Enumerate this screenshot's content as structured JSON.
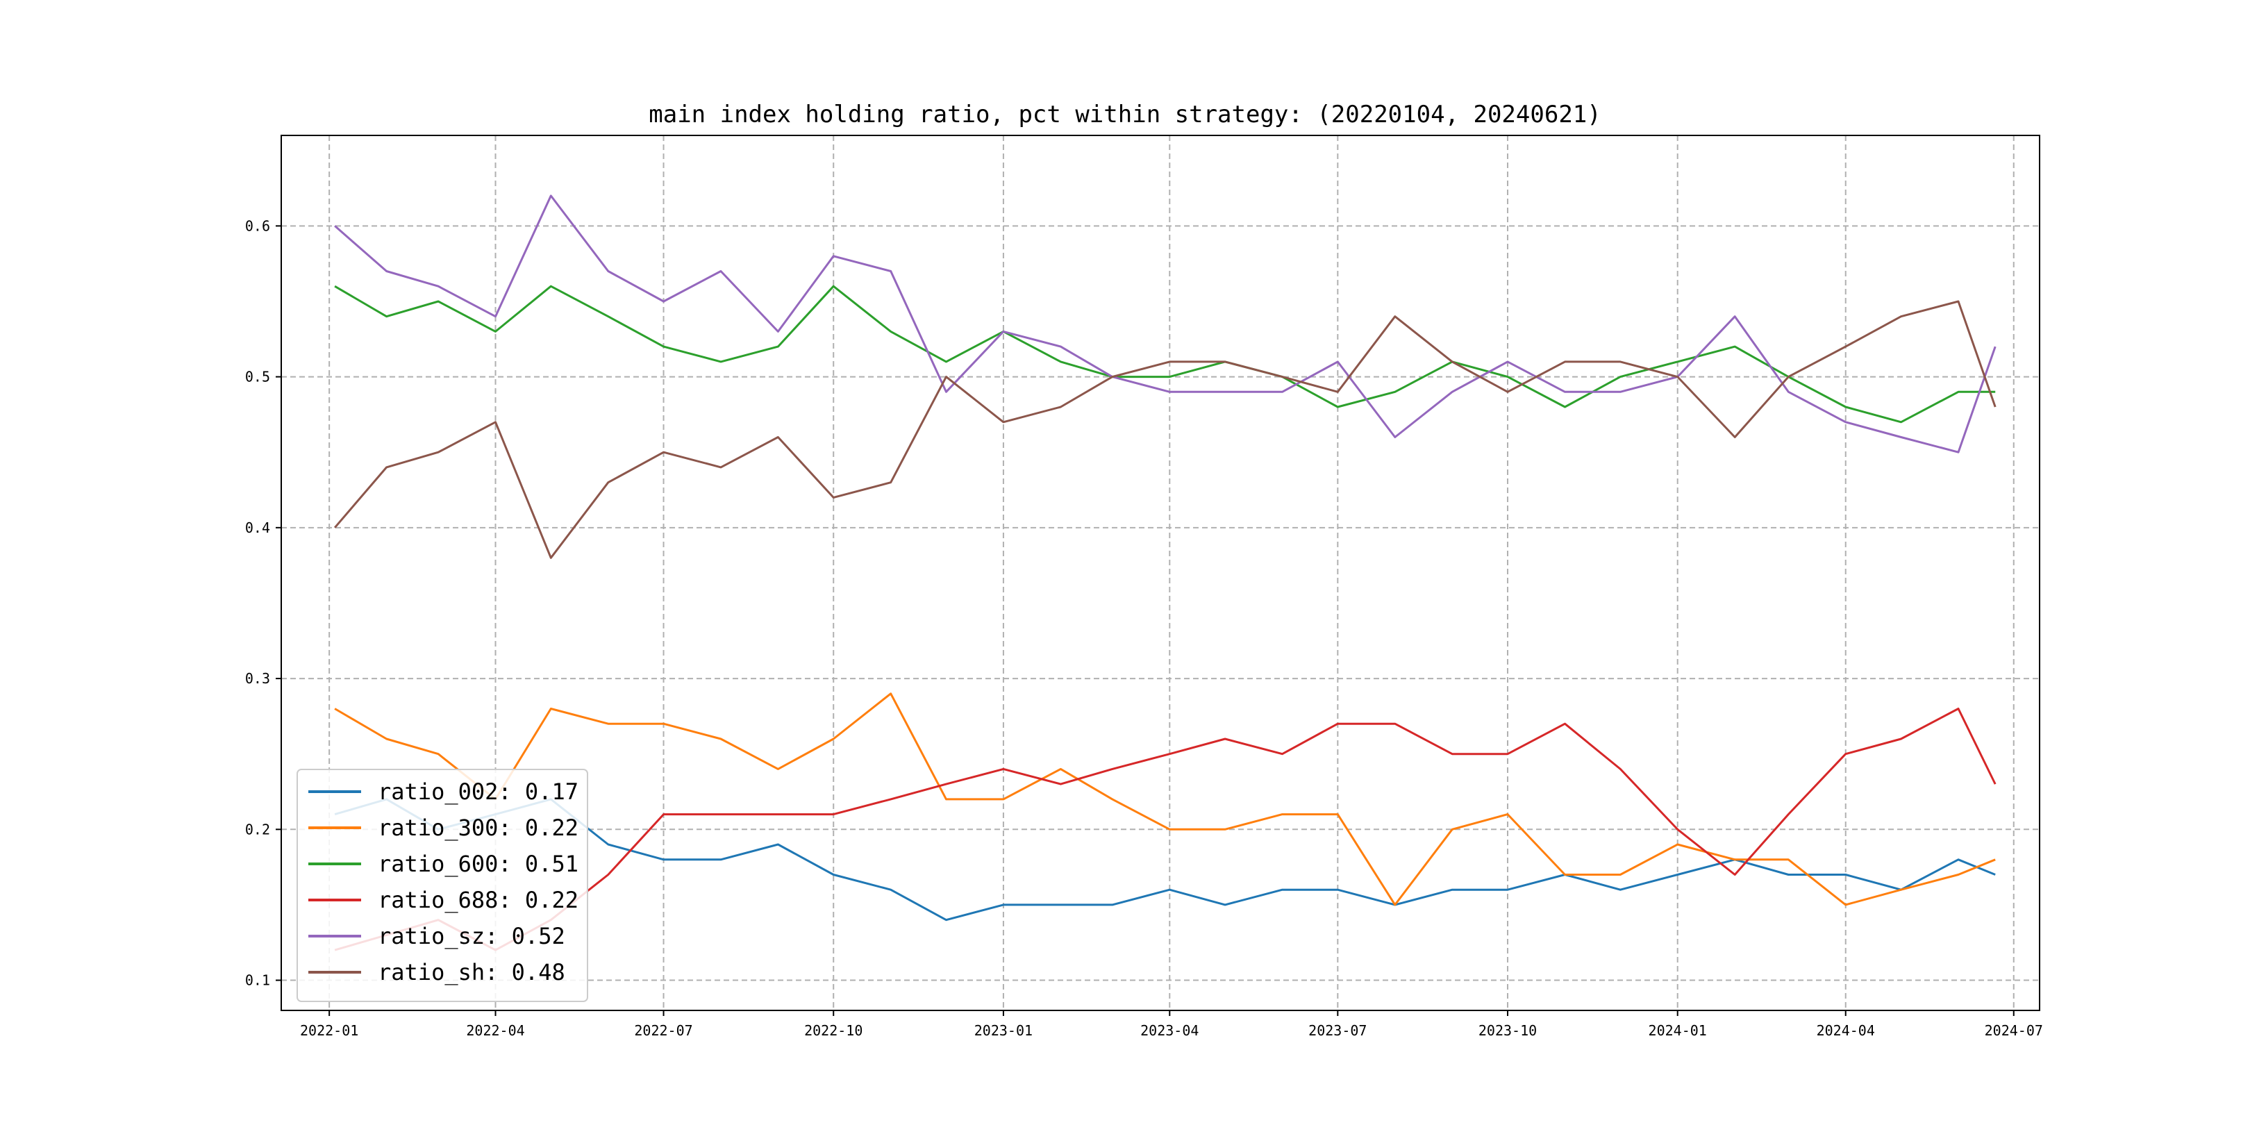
{
  "chart_data": {
    "type": "line",
    "title": "main index holding ratio, pct within strategy: (20220104, 20240621)",
    "xlabel": "",
    "ylabel": "",
    "xlim": [
      "2021-12-06",
      "2024-07-15"
    ],
    "ylim": [
      0.08,
      0.66
    ],
    "x_ticks": [
      "2022-01",
      "2022-04",
      "2022-07",
      "2022-10",
      "2023-01",
      "2023-04",
      "2023-07",
      "2023-10",
      "2024-01",
      "2024-04",
      "2024-07"
    ],
    "y_ticks": [
      "0.1",
      "0.2",
      "0.3",
      "0.4",
      "0.5",
      "0.6"
    ],
    "grid": true,
    "legend_position": "lower-left",
    "x": [
      "2022-01-04",
      "2022-02-01",
      "2022-03-01",
      "2022-04-01",
      "2022-05-01",
      "2022-06-01",
      "2022-07-01",
      "2022-08-01",
      "2022-09-01",
      "2022-10-01",
      "2022-11-01",
      "2022-12-01",
      "2023-01-01",
      "2023-02-01",
      "2023-03-01",
      "2023-04-01",
      "2023-05-01",
      "2023-06-01",
      "2023-07-01",
      "2023-08-01",
      "2023-09-01",
      "2023-10-01",
      "2023-11-01",
      "2023-12-01",
      "2024-01-01",
      "2024-02-01",
      "2024-03-01",
      "2024-04-01",
      "2024-05-01",
      "2024-06-01",
      "2024-06-21"
    ],
    "series": [
      {
        "name": "ratio_002",
        "legend_label": "ratio_002: 0.17",
        "color": "#1f77b4",
        "values": [
          0.21,
          0.22,
          0.2,
          0.21,
          0.22,
          0.19,
          0.18,
          0.18,
          0.19,
          0.17,
          0.16,
          0.14,
          0.15,
          0.15,
          0.15,
          0.16,
          0.15,
          0.16,
          0.16,
          0.15,
          0.16,
          0.16,
          0.17,
          0.16,
          0.17,
          0.18,
          0.17,
          0.17,
          0.16,
          0.18,
          0.17
        ]
      },
      {
        "name": "ratio_300",
        "legend_label": "ratio_300: 0.22",
        "color": "#ff7f0e",
        "values": [
          0.28,
          0.26,
          0.25,
          0.22,
          0.28,
          0.27,
          0.27,
          0.26,
          0.24,
          0.26,
          0.29,
          0.22,
          0.22,
          0.24,
          0.22,
          0.2,
          0.2,
          0.21,
          0.21,
          0.15,
          0.2,
          0.21,
          0.17,
          0.17,
          0.19,
          0.18,
          0.18,
          0.15,
          0.16,
          0.17,
          0.18
        ]
      },
      {
        "name": "ratio_600",
        "legend_label": "ratio_600: 0.51",
        "color": "#2ca02c",
        "values": [
          0.56,
          0.54,
          0.55,
          0.53,
          0.56,
          0.54,
          0.52,
          0.51,
          0.52,
          0.56,
          0.53,
          0.51,
          0.53,
          0.51,
          0.5,
          0.5,
          0.51,
          0.5,
          0.48,
          0.49,
          0.51,
          0.5,
          0.48,
          0.5,
          0.51,
          0.52,
          0.5,
          0.48,
          0.47,
          0.49,
          0.49
        ]
      },
      {
        "name": "ratio_688",
        "legend_label": "ratio_688: 0.22",
        "color": "#d62728",
        "values": [
          0.12,
          0.13,
          0.14,
          0.12,
          0.14,
          0.17,
          0.21,
          0.21,
          0.21,
          0.21,
          0.22,
          0.23,
          0.24,
          0.23,
          0.24,
          0.25,
          0.26,
          0.25,
          0.27,
          0.27,
          0.25,
          0.25,
          0.27,
          0.24,
          0.2,
          0.17,
          0.21,
          0.25,
          0.26,
          0.28,
          0.23
        ]
      },
      {
        "name": "ratio_sz",
        "legend_label": "ratio_sz: 0.52",
        "color": "#9467bd",
        "values": [
          0.6,
          0.57,
          0.56,
          0.54,
          0.62,
          0.57,
          0.55,
          0.57,
          0.53,
          0.58,
          0.57,
          0.49,
          0.53,
          0.52,
          0.5,
          0.49,
          0.49,
          0.49,
          0.51,
          0.46,
          0.49,
          0.51,
          0.49,
          0.49,
          0.5,
          0.54,
          0.49,
          0.47,
          0.46,
          0.45,
          0.52
        ]
      },
      {
        "name": "ratio_sh",
        "legend_label": "ratio_sh: 0.48",
        "color": "#8c564b",
        "values": [
          0.4,
          0.44,
          0.45,
          0.47,
          0.38,
          0.43,
          0.45,
          0.44,
          0.46,
          0.42,
          0.43,
          0.5,
          0.47,
          0.48,
          0.5,
          0.51,
          0.51,
          0.5,
          0.49,
          0.54,
          0.51,
          0.49,
          0.51,
          0.51,
          0.5,
          0.46,
          0.5,
          0.52,
          0.54,
          0.55,
          0.48
        ]
      }
    ]
  }
}
